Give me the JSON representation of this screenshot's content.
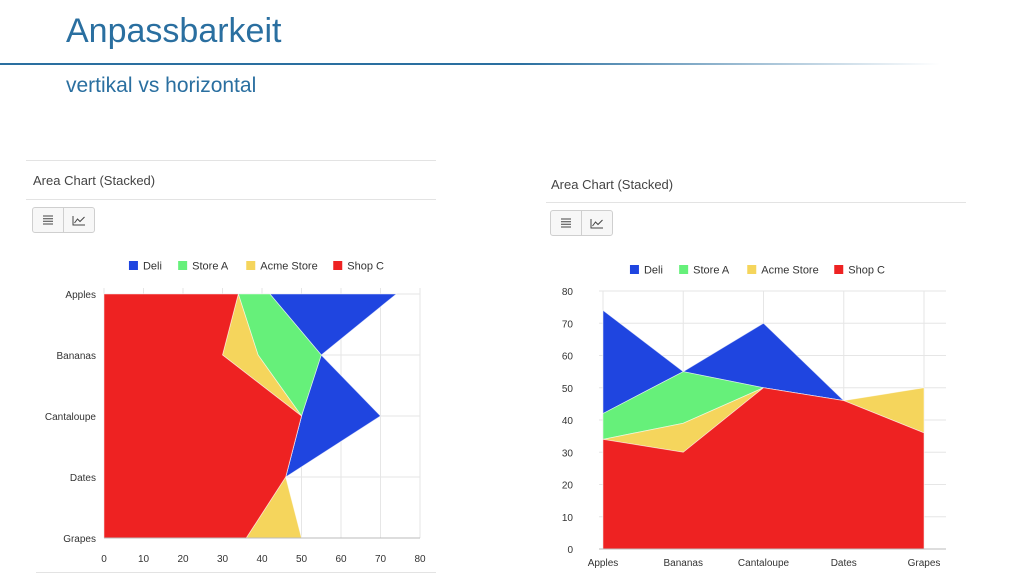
{
  "slide": {
    "title": "Anpassbarkeit",
    "subtitle": "vertikal vs horizontal"
  },
  "colors": {
    "title": "#2a6fa0",
    "Deli": "#1f45e0",
    "Store A": "#66f07a",
    "Acme Store": "#f5d55c",
    "Shop C": "#ee2222"
  },
  "icons": [
    "list-icon",
    "line-chart-icon"
  ],
  "chart_data": [
    {
      "type": "area",
      "orientation": "horizontal",
      "stacked": true,
      "title": "Area Chart (Stacked)",
      "categories": [
        "Apples",
        "Bananas",
        "Cantaloupe",
        "Dates",
        "Grapes"
      ],
      "series": [
        {
          "name": "Deli",
          "values": [
            32,
            0,
            20,
            0,
            0
          ]
        },
        {
          "name": "Store A",
          "values": [
            8,
            16,
            0,
            0,
            0
          ]
        },
        {
          "name": "Acme Store",
          "values": [
            0,
            9,
            0,
            0,
            14
          ]
        },
        {
          "name": "Shop C",
          "values": [
            34,
            30,
            50,
            46,
            36
          ]
        }
      ],
      "legend": [
        "Deli",
        "Store A",
        "Acme Store",
        "Shop C"
      ],
      "legend_position": "top",
      "xlim": [
        0,
        80
      ],
      "xticks": [
        0,
        10,
        20,
        30,
        40,
        50,
        60,
        70,
        80
      ],
      "grid": true
    },
    {
      "type": "area",
      "orientation": "vertical",
      "stacked": true,
      "title": "Area Chart (Stacked)",
      "categories": [
        "Apples",
        "Bananas",
        "Cantaloupe",
        "Dates",
        "Grapes"
      ],
      "series": [
        {
          "name": "Deli",
          "values": [
            32,
            0,
            20,
            0,
            0
          ]
        },
        {
          "name": "Store A",
          "values": [
            8,
            16,
            0,
            0,
            0
          ]
        },
        {
          "name": "Acme Store",
          "values": [
            0,
            9,
            0,
            0,
            14
          ]
        },
        {
          "name": "Shop C",
          "values": [
            34,
            30,
            50,
            46,
            36
          ]
        }
      ],
      "legend": [
        "Deli",
        "Store A",
        "Acme Store",
        "Shop C"
      ],
      "legend_position": "top",
      "ylim": [
        0,
        80
      ],
      "yticks": [
        0,
        10,
        20,
        30,
        40,
        50,
        60,
        70,
        80
      ],
      "grid": true
    }
  ]
}
